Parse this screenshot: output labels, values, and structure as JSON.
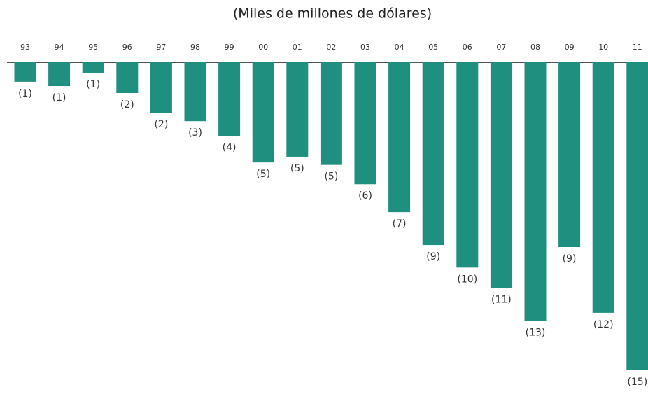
{
  "chart_data": {
    "type": "bar",
    "title": "(Miles de millones de dólares)",
    "categories": [
      "93",
      "94",
      "95",
      "96",
      "97",
      "98",
      "99",
      "00",
      "01",
      "02",
      "03",
      "04",
      "05",
      "06",
      "07",
      "08",
      "09",
      "10",
      "11"
    ],
    "values": [
      -0.95,
      -1.16,
      -0.51,
      -1.5,
      -2.46,
      -2.87,
      -3.58,
      -4.88,
      -4.6,
      -5.0,
      -5.94,
      -7.3,
      -8.9,
      -10.0,
      -11.0,
      -12.6,
      -9.0,
      -12.2,
      -15.0
    ],
    "value_labels": [
      "(1)",
      "(1)",
      "(1)",
      "(2)",
      "(2)",
      "(3)",
      "(4)",
      "(5)",
      "(5)",
      "(5)",
      "(6)",
      "(7)",
      "(9)",
      "(10)",
      "(11)",
      "(13)",
      "(9)",
      "(12)",
      "(15)"
    ],
    "color": "#1f8f80"
  }
}
